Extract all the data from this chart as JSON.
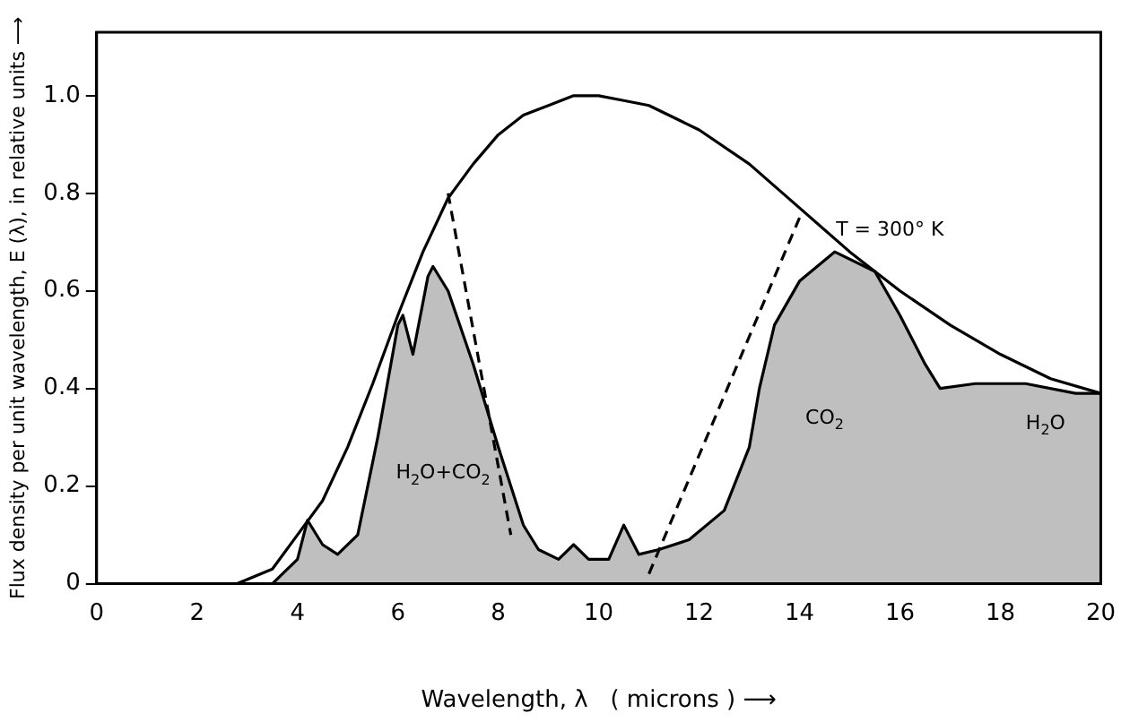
{
  "chart_data": {
    "type": "line",
    "xlabel": "Wavelength, λ   ( microns ) ⟶",
    "ylabel": "Flux density per unit wavelength, E (λ), in relative units ⟶",
    "xlim": [
      0,
      20
    ],
    "xticks": [
      0,
      2,
      4,
      6,
      8,
      10,
      12,
      14,
      16,
      18,
      20
    ],
    "ylim": [
      0,
      1.13
    ],
    "yticks": [
      0,
      {
        "value": 0.2,
        "label": "0.2"
      },
      {
        "value": 0.4,
        "label": "0.4"
      },
      {
        "value": 0.6,
        "label": "0.6"
      },
      {
        "value": 0.8,
        "label": "0.8"
      },
      {
        "value": 1,
        "label": "1.0"
      }
    ],
    "grid": false,
    "legend": false,
    "marker": "none",
    "series": [
      {
        "type": "line",
        "color": "#000000",
        "x": [
          2.8,
          3.5,
          4,
          4.5,
          5,
          5.5,
          6,
          6.5,
          7,
          7.5,
          8,
          8.5,
          9,
          9.5,
          10,
          10.5,
          11,
          12,
          13,
          14,
          15,
          16,
          17,
          18,
          19,
          20
        ],
        "values": [
          0,
          0.03,
          0.1,
          0.17,
          0.28,
          0.41,
          0.55,
          0.68,
          0.79,
          0.86,
          0.92,
          0.96,
          0.98,
          1,
          1,
          0.99,
          0.98,
          0.93,
          0.86,
          0.77,
          0.68,
          0.6,
          0.53,
          0.47,
          0.42,
          0.39
        ]
      },
      {
        "type": "area",
        "color": "#000000",
        "x": [
          3.5,
          4,
          4.2,
          4.5,
          4.8,
          5.2,
          5.6,
          6,
          6.1,
          6.3,
          6.6,
          6.7,
          7,
          7.5,
          8,
          8.5,
          8.8,
          9.2,
          9.5,
          9.8,
          10.2,
          10.5,
          10.8,
          11.2,
          11.8,
          12.5,
          13,
          13.2,
          13.5,
          14,
          14.7,
          15.5,
          16,
          16.5,
          16.8,
          17.5,
          18.5,
          19.5,
          20
        ],
        "values": [
          0,
          0.05,
          0.13,
          0.08,
          0.06,
          0.1,
          0.3,
          0.53,
          0.55,
          0.47,
          0.63,
          0.65,
          0.6,
          0.45,
          0.28,
          0.12,
          0.07,
          0.05,
          0.08,
          0.05,
          0.05,
          0.12,
          0.06,
          0.07,
          0.09,
          0.15,
          0.28,
          0.4,
          0.53,
          0.62,
          0.68,
          0.64,
          0.55,
          0.45,
          0.4,
          0.41,
          0.41,
          0.39,
          0.39
        ]
      },
      {
        "type": "line",
        "color": "#000000",
        "line_style": "dashed",
        "x": [
          7,
          8.25
        ],
        "values": [
          0.8,
          0.1
        ]
      },
      {
        "type": "line",
        "color": "#000000",
        "line_style": "dashed",
        "x": [
          11,
          14
        ],
        "values": [
          0.02,
          0.75
        ]
      }
    ],
    "annotations": [
      "T = 300° K",
      "H$_{2}$O+CO$_{2}$",
      "CO$_{2}$",
      "H$_{2}$O"
    ]
  }
}
